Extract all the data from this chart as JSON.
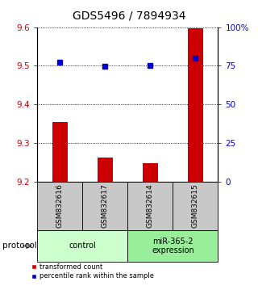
{
  "title": "GDS5496 / 7894934",
  "samples": [
    "GSM832616",
    "GSM832617",
    "GSM832614",
    "GSM832615"
  ],
  "bar_values": [
    9.355,
    9.262,
    9.248,
    9.598
  ],
  "bar_base": 9.2,
  "bar_color": "#cc0000",
  "dot_values": [
    77.5,
    74.5,
    75.25,
    80.0
  ],
  "dot_color": "#0000cc",
  "ylim_left": [
    9.2,
    9.6
  ],
  "ylim_right": [
    0,
    100
  ],
  "yticks_left": [
    9.2,
    9.3,
    9.4,
    9.5,
    9.6
  ],
  "yticks_right": [
    0,
    25,
    50,
    75,
    100
  ],
  "ytick_labels_right": [
    "0",
    "25",
    "50",
    "75",
    "100%"
  ],
  "groups": [
    {
      "label": "control",
      "samples": [
        0,
        1
      ],
      "color": "#ccffcc"
    },
    {
      "label": "miR-365-2\nexpression",
      "samples": [
        2,
        3
      ],
      "color": "#99ee99"
    }
  ],
  "protocol_label": "protocol",
  "legend_red": "transformed count",
  "legend_blue": "percentile rank within the sample",
  "bar_color_legend": "#cc0000",
  "dot_color_legend": "#0000cc",
  "label_color_left": "#cc0000",
  "label_color_right": "#0000cc",
  "bar_width": 0.35,
  "sample_box_color": "#c8c8c8",
  "fig_width": 3.2,
  "fig_height": 3.54,
  "dpi": 100
}
